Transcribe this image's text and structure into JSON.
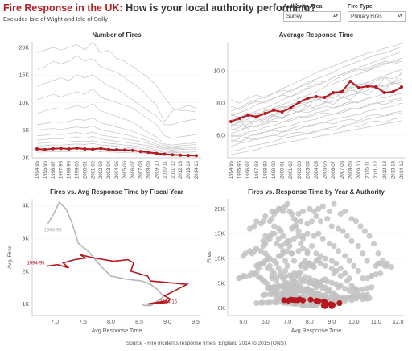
{
  "header": {
    "title_red": "Fire Response in the UK:",
    "title_dark": "How is your local authority performing?",
    "subtitle": "Excludes Isle of Wight and Isle of Scilly"
  },
  "filters": {
    "authority": {
      "label": "Authority Area",
      "value": "Surrey"
    },
    "fire_type": {
      "label": "Fire Type",
      "value": "Primary Fires"
    }
  },
  "footer": "Source - Fire incidents response times: England 2014 to 2015 (ONS)",
  "colors": {
    "highlight": "#b5191f",
    "background_lines": "#c4c4c4",
    "scatter_gray": "#c2c2c2"
  },
  "chart_data": [
    {
      "id": "fires",
      "type": "line",
      "title": "Number of Fires",
      "categories": [
        "1994-95",
        "1995-96",
        "1996-97",
        "1997-98",
        "1998-99",
        "1999-00",
        "2000-01",
        "2001-02",
        "2002-03",
        "2003-04",
        "2004-05",
        "2005-06",
        "2006-07",
        "2007-08",
        "2008-09",
        "2009-10",
        "2010-11",
        "2011-12",
        "2012-13",
        "2013-14",
        "2014-15"
      ],
      "y_ticks": [
        "0K",
        "5K",
        "10K",
        "15K",
        "20K"
      ],
      "ylim": [
        0,
        21000
      ],
      "highlight_series": {
        "name": "Surrey",
        "values": [
          1600,
          1500,
          1650,
          1700,
          1600,
          1750,
          1600,
          1550,
          1700,
          1500,
          1450,
          1400,
          1350,
          1150,
          1000,
          800,
          650,
          550,
          480,
          420,
          400
        ]
      },
      "background_series": [
        [
          19000,
          19500,
          20000,
          19500,
          20000,
          20500,
          19500,
          21000,
          19000,
          19500,
          18000,
          17500,
          16500,
          15500,
          14500,
          13000,
          11000,
          9000,
          8500,
          8500,
          8300
        ],
        [
          16000,
          16500,
          17500,
          17000,
          17500,
          18500,
          17500,
          18000,
          16500,
          16000,
          15500,
          14500,
          13500,
          12500,
          11000,
          9500,
          6500,
          8500,
          9000,
          9500,
          9000
        ],
        [
          13000,
          13500,
          14000,
          14500,
          14000,
          15000,
          14500,
          15000,
          14000,
          13000,
          12500,
          11500,
          10500,
          9500,
          8500,
          7500,
          6000,
          6000,
          6500,
          6800,
          7000
        ],
        [
          10500,
          11000,
          11500,
          11000,
          11500,
          12000,
          11500,
          12500,
          11000,
          10500,
          10000,
          9500,
          9000,
          8000,
          7000,
          6000,
          4000,
          3500,
          3800,
          4000,
          4200
        ],
        [
          8000,
          8500,
          9000,
          8800,
          9000,
          9500,
          9000,
          9800,
          8500,
          8000,
          7500,
          7000,
          6500,
          5500,
          4500,
          3800,
          2500,
          2300,
          2500,
          2600,
          2700
        ],
        [
          6000,
          6200,
          6500,
          6400,
          6600,
          7000,
          6800,
          7200,
          6300,
          6000,
          5600,
          5200,
          4800,
          4200,
          3600,
          3000,
          2200,
          2000,
          2200,
          2300,
          2400
        ],
        [
          5000,
          5200,
          5300,
          5100,
          5400,
          5600,
          5400,
          5800,
          5100,
          4800,
          4500,
          4200,
          3900,
          3500,
          3000,
          2500,
          1900,
          1800,
          1900,
          2000,
          2000
        ],
        [
          4000,
          4100,
          4300,
          4200,
          4400,
          4600,
          4300,
          4700,
          4100,
          3900,
          3700,
          3400,
          3200,
          2900,
          2600,
          2200,
          1700,
          1600,
          1700,
          1800,
          1800
        ],
        [
          3200,
          3300,
          3500,
          3400,
          3600,
          3800,
          3500,
          3900,
          3400,
          3200,
          3000,
          2800,
          2600,
          2400,
          2200,
          1900,
          1500,
          1400,
          1500,
          1500,
          1600
        ],
        [
          2600,
          2700,
          2800,
          2800,
          2900,
          3000,
          2900,
          3100,
          2800,
          2600,
          2500,
          2300,
          2200,
          2000,
          1800,
          1500,
          1200,
          1100,
          1200,
          1200,
          1300
        ],
        [
          2200,
          2200,
          2300,
          2300,
          2400,
          2500,
          2400,
          2600,
          2300,
          2200,
          2100,
          1900,
          1800,
          1700,
          1500,
          1300,
          1000,
          900,
          1000,
          1000,
          1100
        ],
        [
          1000,
          1050,
          1100,
          1100,
          1150,
          1200,
          1150,
          1250,
          1100,
          1050,
          1000,
          950,
          900,
          850,
          750,
          650,
          550,
          500,
          520,
          540,
          560
        ]
      ]
    },
    {
      "id": "response",
      "type": "line",
      "title": "Average Response Time",
      "categories": [
        "1994-95",
        "1995-96",
        "1996-97",
        "1997-98",
        "1998-99",
        "1999-00",
        "2000-01",
        "2001-02",
        "2002-03",
        "2003-04",
        "2004-05",
        "2005-06",
        "2006-07",
        "2007-08",
        "2008-09",
        "2009-10",
        "2010-11",
        "2011-12",
        "2012-13",
        "2013-14",
        "2014-15"
      ],
      "y_ticks": [
        "6.0",
        "8.0",
        "10.0"
      ],
      "ylim": [
        4.6,
        11.8
      ],
      "highlight_series": {
        "name": "Surrey",
        "values": [
          6.85,
          7.05,
          7.25,
          7.15,
          7.35,
          7.55,
          7.45,
          7.7,
          8.05,
          8.3,
          8.4,
          8.35,
          8.65,
          8.7,
          9.35,
          8.95,
          9.05,
          9.0,
          8.65,
          8.7,
          9.0
        ]
      },
      "background_series": [
        [
          7.5,
          7.7,
          8.0,
          8.2,
          8.4,
          8.6,
          8.9,
          9.1,
          9.4,
          9.6,
          9.9,
          10.1,
          10.3,
          10.5,
          10.7,
          10.9,
          11.1,
          11.2,
          11.4,
          11.5,
          11.7
        ],
        [
          7.2,
          7.4,
          7.6,
          7.9,
          8.1,
          8.3,
          8.5,
          8.8,
          9.0,
          9.3,
          9.5,
          9.7,
          9.9,
          10.2,
          10.4,
          10.6,
          10.8,
          11.0,
          11.1,
          11.3,
          11.5
        ],
        [
          6.9,
          7.1,
          7.3,
          7.5,
          7.7,
          7.9,
          8.2,
          8.4,
          8.6,
          8.9,
          9.1,
          9.3,
          9.6,
          9.8,
          10.0,
          10.2,
          10.4,
          10.6,
          10.8,
          11.0,
          11.2
        ],
        [
          6.6,
          6.8,
          7.0,
          7.2,
          7.5,
          7.7,
          7.9,
          8.1,
          8.3,
          8.5,
          8.7,
          9.0,
          9.2,
          9.4,
          9.6,
          9.8,
          10.0,
          10.2,
          10.4,
          10.6,
          10.8
        ],
        [
          7.8,
          7.6,
          7.9,
          8.1,
          8.0,
          8.3,
          8.5,
          8.4,
          8.7,
          9.0,
          9.2,
          9.1,
          9.4,
          9.7,
          9.9,
          10.1,
          10.0,
          10.3,
          10.5,
          10.4,
          10.6
        ],
        [
          6.3,
          6.5,
          6.7,
          6.9,
          7.1,
          7.3,
          7.5,
          7.6,
          7.8,
          8.0,
          8.2,
          8.3,
          8.5,
          8.7,
          8.9,
          9.1,
          9.3,
          9.5,
          9.7,
          9.9,
          10.1
        ],
        [
          7.0,
          6.9,
          7.2,
          7.4,
          7.3,
          7.6,
          7.8,
          7.7,
          8.0,
          8.2,
          8.4,
          8.3,
          8.6,
          8.8,
          9.0,
          9.2,
          9.1,
          9.4,
          9.6,
          9.5,
          9.8
        ],
        [
          6.1,
          6.3,
          6.5,
          6.6,
          6.8,
          7.0,
          7.1,
          7.3,
          7.5,
          7.6,
          7.8,
          8.0,
          8.1,
          8.3,
          8.5,
          8.6,
          8.8,
          9.0,
          9.1,
          9.3,
          9.5
        ],
        [
          7.3,
          7.1,
          7.4,
          7.2,
          7.5,
          7.7,
          7.6,
          7.9,
          8.1,
          8.0,
          8.2,
          8.4,
          8.3,
          8.6,
          8.8,
          8.7,
          9.0,
          9.1,
          9.0,
          9.2,
          9.3
        ],
        [
          5.9,
          6.0,
          6.2,
          6.3,
          6.5,
          6.6,
          6.8,
          6.9,
          7.1,
          7.2,
          7.4,
          7.5,
          7.7,
          7.8,
          8.0,
          8.1,
          8.3,
          8.4,
          8.6,
          8.7,
          8.9
        ],
        [
          6.7,
          6.6,
          6.9,
          6.8,
          7.0,
          7.2,
          7.1,
          7.3,
          7.5,
          7.4,
          7.6,
          7.8,
          7.7,
          7.9,
          8.1,
          8.0,
          8.3,
          8.4,
          8.3,
          8.5,
          8.6
        ],
        [
          5.6,
          5.8,
          5.9,
          6.1,
          6.2,
          6.4,
          6.5,
          6.6,
          6.8,
          6.9,
          7.0,
          7.2,
          7.3,
          7.4,
          7.6,
          7.7,
          7.8,
          8.0,
          8.1,
          8.2,
          8.3
        ],
        [
          6.4,
          6.3,
          6.6,
          6.5,
          6.7,
          6.9,
          6.8,
          7.0,
          7.2,
          7.1,
          7.3,
          7.4,
          7.3,
          7.5,
          7.7,
          7.6,
          7.9,
          8.0,
          7.9,
          8.1,
          8.2
        ],
        [
          5.3,
          5.5,
          5.6,
          5.8,
          5.9,
          6.0,
          6.2,
          6.3,
          6.4,
          6.6,
          6.7,
          6.8,
          7.0,
          7.1,
          7.2,
          7.3,
          7.5,
          7.6,
          7.7,
          7.8,
          8.0
        ],
        [
          6.0,
          5.9,
          6.1,
          6.0,
          6.2,
          6.3,
          6.2,
          6.4,
          6.6,
          6.5,
          6.7,
          6.8,
          6.7,
          6.9,
          7.0,
          6.9,
          7.2,
          7.3,
          7.2,
          7.4,
          7.5
        ],
        [
          5.0,
          5.1,
          5.3,
          5.4,
          5.5,
          5.6,
          5.8,
          5.9,
          6.0,
          6.1,
          6.2,
          6.4,
          6.5,
          6.6,
          6.7,
          6.8,
          7.0,
          7.1,
          7.2,
          7.3,
          7.4
        ],
        [
          5.7,
          5.6,
          5.8,
          5.7,
          5.9,
          6.0,
          5.9,
          6.1,
          6.2,
          6.1,
          6.3,
          6.4,
          6.3,
          6.5,
          6.6,
          6.5,
          6.8,
          6.9,
          6.8,
          7.0,
          7.1
        ],
        [
          4.8,
          4.9,
          5.0,
          5.1,
          5.3,
          5.4,
          5.5,
          5.6,
          5.7,
          5.8,
          5.9,
          6.0,
          6.1,
          6.2,
          6.3,
          6.4,
          6.5,
          6.6,
          6.7,
          6.8,
          6.9
        ],
        [
          8.2,
          8.0,
          8.3,
          8.5,
          8.3,
          8.6,
          8.8,
          8.7,
          9.0,
          9.2,
          9.4,
          9.3,
          9.6,
          9.8,
          10.0,
          10.2,
          10.1,
          10.4,
          10.6,
          10.5,
          10.7
        ],
        [
          6.5,
          6.9,
          6.4,
          7.1,
          6.8,
          7.3,
          7.0,
          7.6,
          7.4,
          7.9,
          7.6,
          8.1,
          7.9,
          8.4,
          8.2,
          8.7,
          8.5,
          9.0,
          8.8,
          9.3,
          9.1
        ],
        [
          7.1,
          6.8,
          7.3,
          7.0,
          7.6,
          7.2,
          7.8,
          7.5,
          8.1,
          7.7,
          8.4,
          8.0,
          8.7,
          8.3,
          9.0,
          8.6,
          9.3,
          8.9,
          9.6,
          9.2,
          9.9
        ]
      ]
    },
    {
      "id": "trajectory",
      "type": "line",
      "title": "Fires vs. Avg Response Time by Fiscal Year",
      "xlabel": "Avg Response Time",
      "ylabel": "Avg. Fires",
      "x_ticks": [
        "7.0",
        "7.5",
        "8.0",
        "8.5",
        "9.0",
        "9.5"
      ],
      "y_ticks": [
        "1K",
        "2K",
        "3K",
        "4K"
      ],
      "xlim": [
        6.6,
        9.6
      ],
      "ylim": [
        650,
        4200
      ],
      "gray_label": "1994-95",
      "red_start_label": "1994-95",
      "red_end_label": "2014-15",
      "gray_series": {
        "points": [
          [
            6.88,
            3450
          ],
          [
            7.0,
            3800
          ],
          [
            7.08,
            4100
          ],
          [
            7.2,
            3900
          ],
          [
            7.3,
            3500
          ],
          [
            7.42,
            2850
          ],
          [
            7.6,
            2600
          ],
          [
            7.72,
            2350
          ],
          [
            7.85,
            2100
          ],
          [
            8.0,
            1850
          ],
          [
            8.3,
            1750
          ],
          [
            8.55,
            1700
          ],
          [
            8.7,
            1600
          ],
          [
            8.82,
            1450
          ],
          [
            8.9,
            1300
          ],
          [
            8.95,
            1250
          ],
          [
            8.75,
            1000
          ],
          [
            8.75,
            1000
          ],
          [
            8.7,
            950
          ],
          [
            8.6,
            960
          ],
          [
            8.55,
            980
          ]
        ]
      },
      "red_series": {
        "points": [
          [
            6.85,
            2150
          ],
          [
            7.05,
            2200
          ],
          [
            7.25,
            2100
          ],
          [
            7.15,
            2250
          ],
          [
            7.35,
            2350
          ],
          [
            7.55,
            2400
          ],
          [
            7.45,
            2500
          ],
          [
            7.7,
            2400
          ],
          [
            8.05,
            2300
          ],
          [
            8.3,
            2350
          ],
          [
            8.4,
            2250
          ],
          [
            8.35,
            2000
          ],
          [
            8.65,
            1850
          ],
          [
            8.7,
            1700
          ],
          [
            9.35,
            1600
          ],
          [
            8.95,
            1250
          ],
          [
            9.05,
            1150
          ],
          [
            9.0,
            1050
          ],
          [
            8.65,
            1000
          ],
          [
            8.7,
            1020
          ],
          [
            9.0,
            1100
          ]
        ]
      }
    },
    {
      "id": "scatter",
      "type": "scatter",
      "title": "Fires vs. Response Time by Year & Authority",
      "xlabel": "Avg Response Time",
      "ylabel": "Fires",
      "x_ticks": [
        "5.0",
        "6.0",
        "7.0",
        "8.0",
        "9.0",
        "10.0",
        "11.0",
        "12.0"
      ],
      "y_ticks": [
        "0K",
        "5K",
        "10K",
        "15K",
        "20K"
      ],
      "xlim": [
        4.3,
        12.3
      ],
      "ylim": [
        -1500,
        22000
      ],
      "red_points": [
        [
          6.85,
          1600
        ],
        [
          7.05,
          1500
        ],
        [
          7.25,
          1650
        ],
        [
          7.15,
          1700
        ],
        [
          7.35,
          1600
        ],
        [
          7.55,
          1750
        ],
        [
          7.45,
          1600
        ],
        [
          7.7,
          1550
        ],
        [
          8.05,
          1700
        ],
        [
          8.3,
          1500
        ],
        [
          8.4,
          1450
        ],
        [
          8.35,
          1400
        ],
        [
          8.65,
          1350
        ],
        [
          8.7,
          1150
        ],
        [
          9.35,
          1000
        ],
        [
          8.95,
          800
        ],
        [
          9.05,
          650
        ],
        [
          9.0,
          550
        ],
        [
          8.65,
          480
        ],
        [
          8.7,
          420
        ],
        [
          9.0,
          400
        ]
      ]
    }
  ]
}
